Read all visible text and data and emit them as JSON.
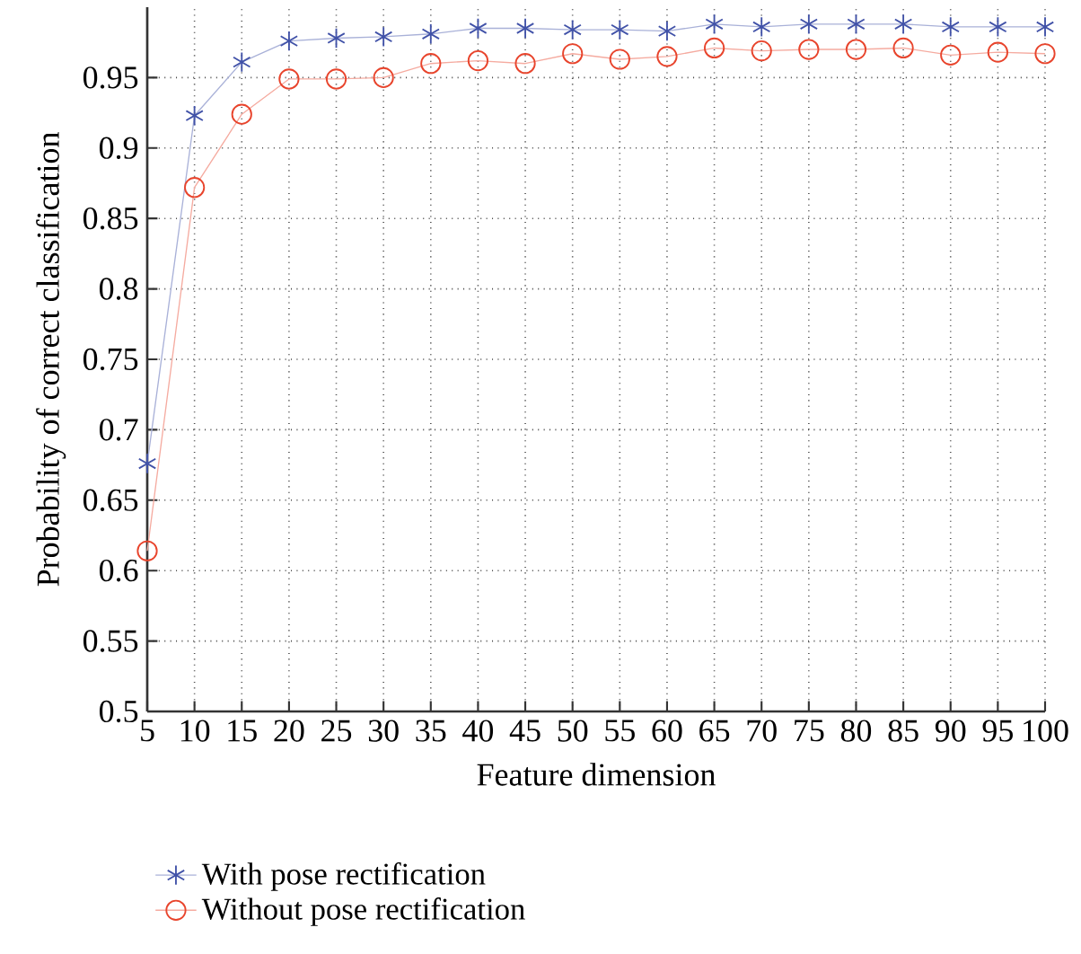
{
  "chart_data": {
    "type": "line",
    "xlabel": "Feature dimension",
    "ylabel": "Probability of correct classification",
    "x": [
      5,
      10,
      15,
      20,
      25,
      30,
      35,
      40,
      45,
      50,
      55,
      60,
      65,
      70,
      75,
      80,
      85,
      90,
      95,
      100
    ],
    "series": [
      {
        "name": "With pose rectification",
        "color": "#4152a8",
        "marker": "cross",
        "values": [
          0.676,
          0.923,
          0.961,
          0.976,
          0.978,
          0.979,
          0.981,
          0.985,
          0.985,
          0.984,
          0.984,
          0.983,
          0.988,
          0.986,
          0.988,
          0.988,
          0.988,
          0.986,
          0.986,
          0.986
        ]
      },
      {
        "name": "Without pose rectification",
        "color": "#e8442c",
        "marker": "circle",
        "values": [
          0.614,
          0.872,
          0.924,
          0.949,
          0.949,
          0.95,
          0.96,
          0.962,
          0.96,
          0.967,
          0.963,
          0.965,
          0.971,
          0.969,
          0.97,
          0.97,
          0.971,
          0.966,
          0.968,
          0.967
        ]
      }
    ],
    "xlim": [
      5,
      100
    ],
    "ylim": [
      0.5,
      1.0
    ],
    "xticks": [
      5,
      10,
      15,
      20,
      25,
      30,
      35,
      40,
      45,
      50,
      55,
      60,
      65,
      70,
      75,
      80,
      85,
      90,
      95,
      100
    ],
    "yticks": [
      0.5,
      0.55,
      0.6,
      0.65,
      0.7,
      0.75,
      0.8,
      0.85,
      0.9,
      0.95
    ],
    "grid": true,
    "legend": "bottom",
    "line_style": "solid"
  }
}
